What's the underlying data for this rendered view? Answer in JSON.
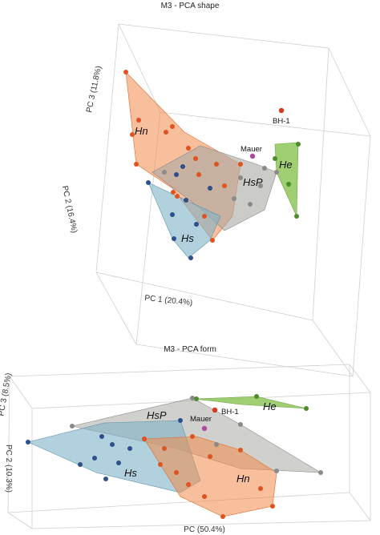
{
  "colors": {
    "Hn": "#f08a4b",
    "Hs": "#7fb3c8",
    "HsP": "#a9a9a3",
    "He": "#8fc65a",
    "Hn_point": "#e0521f",
    "Hs_point": "#2d4f8a",
    "HsP_point": "#8a8a8a",
    "He_point": "#4e8b2a",
    "BH1_point": "#d63b1f",
    "Mauer_point": "#b04aa0"
  },
  "chart_data": [
    {
      "type": "scatter",
      "title": "M3 - PCA shape",
      "xlabel": "PC 1 (20.4%)",
      "ylabel": "PC 2 (16.4%)",
      "zlabel": "PC 3 (11.8%)",
      "series": [
        {
          "name": "Hn",
          "hull": true,
          "points": [
            [
              0.1,
              0.9
            ],
            [
              0.24,
              0.72
            ],
            [
              0.3,
              0.55
            ],
            [
              0.34,
              0.46
            ],
            [
              0.22,
              0.58
            ],
            [
              0.28,
              0.5
            ],
            [
              0.4,
              0.6
            ],
            [
              0.48,
              0.55
            ],
            [
              0.46,
              0.4
            ],
            [
              0.38,
              0.38
            ],
            [
              0.52,
              0.35
            ],
            [
              0.58,
              0.45
            ],
            [
              0.3,
              0.3
            ],
            [
              0.42,
              0.25
            ],
            [
              0.36,
              0.2
            ],
            [
              0.5,
              0.18
            ]
          ]
        },
        {
          "name": "Hs",
          "hull": true,
          "points": [
            [
              0.18,
              0.28
            ],
            [
              0.26,
              0.2
            ],
            [
              0.32,
              0.12
            ],
            [
              0.38,
              0.05
            ],
            [
              0.4,
              0.18
            ],
            [
              0.44,
              0.3
            ],
            [
              0.3,
              0.35
            ],
            [
              0.22,
              0.16
            ],
            [
              0.34,
              0.28
            ]
          ]
        },
        {
          "name": "HsP",
          "hull": true,
          "points": [
            [
              0.36,
              0.5
            ],
            [
              0.62,
              0.47
            ],
            [
              0.68,
              0.42
            ],
            [
              0.72,
              0.3
            ],
            [
              0.54,
              0.18
            ],
            [
              0.58,
              0.32
            ],
            [
              0.48,
              0.44
            ]
          ]
        },
        {
          "name": "He",
          "hull": true,
          "points": [
            [
              0.82,
              0.5
            ],
            [
              0.88,
              0.6
            ],
            [
              0.92,
              0.4
            ],
            [
              0.86,
              0.3
            ],
            [
              0.8,
              0.42
            ]
          ]
        },
        {
          "name": "BH-1",
          "points": [
            [
              0.84,
              0.8
            ]
          ]
        },
        {
          "name": "Mauer",
          "points": [
            [
              0.74,
              0.56
            ]
          ]
        }
      ]
    },
    {
      "type": "scatter",
      "title": "M3 - PCA form",
      "xlabel": "PC (50.4%)",
      "ylabel": "PC 2 (10.3%)",
      "zlabel": "PC 3 (8.5%)",
      "series": [
        {
          "name": "Hn",
          "hull": true,
          "points": [
            [
              0.38,
              0.62
            ],
            [
              0.5,
              0.55
            ],
            [
              0.62,
              0.42
            ],
            [
              0.68,
              0.2
            ],
            [
              0.64,
              0.1
            ],
            [
              0.56,
              0.04
            ],
            [
              0.46,
              0.12
            ],
            [
              0.4,
              0.28
            ],
            [
              0.52,
              0.3
            ],
            [
              0.58,
              0.22
            ],
            [
              0.44,
              0.4
            ],
            [
              0.6,
              0.34
            ]
          ]
        },
        {
          "name": "Hs",
          "hull": true,
          "points": [
            [
              0.06,
              0.52
            ],
            [
              0.26,
              0.62
            ],
            [
              0.4,
              0.58
            ],
            [
              0.44,
              0.46
            ],
            [
              0.36,
              0.16
            ],
            [
              0.24,
              0.28
            ],
            [
              0.3,
              0.4
            ],
            [
              0.2,
              0.42
            ],
            [
              0.34,
              0.3
            ]
          ]
        },
        {
          "name": "HsP",
          "hull": true,
          "points": [
            [
              0.18,
              0.74
            ],
            [
              0.48,
              0.86
            ],
            [
              0.62,
              0.72
            ],
            [
              0.86,
              0.42
            ],
            [
              0.7,
              0.38
            ],
            [
              0.52,
              0.6
            ],
            [
              0.4,
              0.64
            ]
          ]
        },
        {
          "name": "He",
          "hull": true,
          "points": [
            [
              0.54,
              0.9
            ],
            [
              0.74,
              0.94
            ],
            [
              0.86,
              0.88
            ],
            [
              0.66,
              0.86
            ]
          ]
        },
        {
          "name": "BH-1",
          "points": [
            [
              0.56,
              0.86
            ]
          ]
        },
        {
          "name": "Mauer",
          "points": [
            [
              0.58,
              0.8
            ]
          ]
        }
      ]
    }
  ]
}
